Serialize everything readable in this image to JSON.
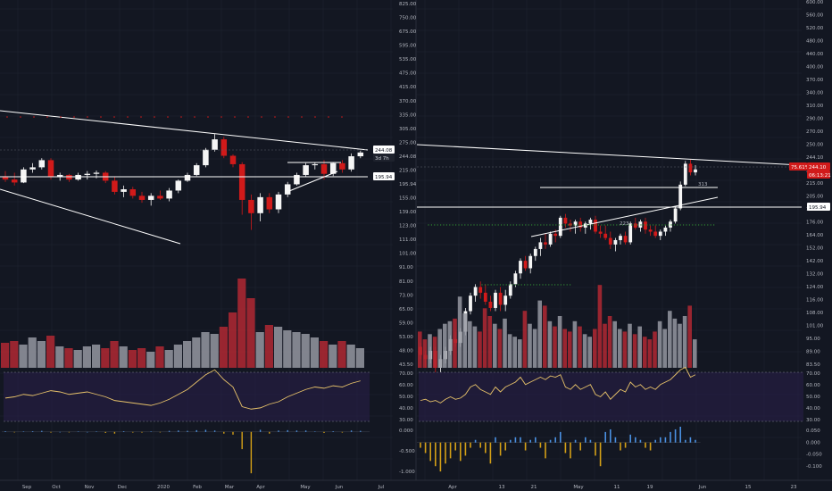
{
  "chart_data": [
    {
      "type": "candlestick",
      "panel": "left-weekly-price",
      "x_ticks": [
        "Sep",
        "Oct",
        "Nov",
        "Dec",
        "2020",
        "Feb",
        "Mar",
        "Apr",
        "May",
        "Jun",
        "Jul"
      ],
      "y_ticks": [
        "825.00",
        "750.00",
        "675.00",
        "595.00",
        "535.00",
        "475.00",
        "415.00",
        "370.00",
        "335.00",
        "305.00",
        "275.00",
        "244.08",
        "215.00",
        "195.94",
        "155.00",
        "139.00",
        "123.00",
        "111.00",
        "101.00",
        "91.00",
        "81.00",
        "73.00",
        "65.00",
        "59.00",
        "53.00",
        "48.00",
        "43.50"
      ],
      "scale": "log",
      "series": [
        {
          "values": [
            [
              205,
              215,
              196,
              200
            ],
            [
              200,
              212,
              190,
              195
            ],
            [
              195,
              222,
              194,
              218
            ],
            [
              218,
              230,
              212,
              222
            ],
            [
              222,
              240,
              218,
              236
            ],
            [
              236,
              240,
              200,
              204
            ],
            [
              204,
              212,
              198,
              208
            ],
            [
              208,
              210,
              196,
              200
            ],
            [
              200,
              212,
              198,
              208
            ],
            [
              208,
              215,
              200,
              210
            ],
            [
              210,
              216,
              202,
              212
            ],
            [
              212,
              215,
              194,
              198
            ],
            [
              198,
              204,
              176,
              180
            ],
            [
              180,
              190,
              172,
              184
            ],
            [
              184,
              188,
              170,
              174
            ],
            [
              174,
              180,
              164,
              168
            ],
            [
              168,
              178,
              160,
              174
            ],
            [
              174,
              182,
              168,
              170
            ],
            [
              170,
              186,
              166,
              182
            ],
            [
              182,
              200,
              178,
              198
            ],
            [
              198,
              212,
              196,
              208
            ],
            [
              208,
              230,
              206,
              226
            ],
            [
              226,
              262,
              222,
              258
            ],
            [
              258,
              295,
              254,
              282
            ],
            [
              282,
              288,
              240,
              245
            ],
            [
              245,
              248,
              222,
              228
            ],
            [
              228,
              232,
              148,
              168
            ],
            [
              168,
              176,
              130,
              150
            ],
            [
              150,
              178,
              140,
              172
            ],
            [
              172,
              178,
              150,
              155
            ],
            [
              155,
              180,
              150,
              176
            ],
            [
              176,
              196,
              172,
              192
            ],
            [
              192,
              212,
              190,
              208
            ],
            [
              208,
              230,
              204,
              226
            ],
            [
              226,
              232,
              218,
              228
            ],
            [
              228,
              236,
              200,
              210
            ],
            [
              210,
              232,
              206,
              230
            ],
            [
              230,
              236,
              212,
              218
            ],
            [
              218,
              250,
              214,
              244
            ],
            [
              244,
              256,
              240,
              252
            ]
          ]
        }
      ],
      "annotations": [
        "244.08",
        "3d 7h",
        "195.94"
      ]
    },
    {
      "type": "line",
      "panel": "left-rsi",
      "y_ticks": [
        "70.00",
        "60.00",
        "50.00",
        "40.00",
        "30.00"
      ],
      "ylim": [
        30,
        70
      ],
      "series": [
        {
          "values": [
            49,
            50,
            52,
            51,
            53,
            55,
            54,
            52,
            53,
            54,
            52,
            50,
            47,
            46,
            45,
            44,
            43,
            45,
            48,
            52,
            56,
            62,
            68,
            72,
            64,
            58,
            42,
            40,
            41,
            44,
            46,
            50,
            53,
            56,
            58,
            57,
            59,
            58,
            61,
            63
          ]
        }
      ]
    },
    {
      "type": "bar",
      "panel": "left-histogram",
      "y_ticks": [
        "0.000",
        "-0.500",
        "-1.000"
      ],
      "ylim": [
        -1.3,
        0.15
      ],
      "series": [
        {
          "values": [
            0.02,
            -0.01,
            0.01,
            0.02,
            0.03,
            -0.02,
            0.0,
            -0.01,
            0.01,
            0.0,
            0.01,
            -0.03,
            -0.05,
            0.02,
            -0.02,
            -0.02,
            0.01,
            -0.01,
            0.03,
            0.04,
            0.03,
            0.05,
            0.06,
            0.04,
            -0.05,
            -0.08,
            -0.5,
            -1.2,
            0.06,
            -0.05,
            0.04,
            0.05,
            0.04,
            0.04,
            0.01,
            -0.03,
            0.02,
            -0.02,
            0.04,
            0.03
          ]
        }
      ]
    },
    {
      "type": "candlestick",
      "panel": "right-daily-price",
      "x_ticks": [
        "Apr",
        "13",
        "21",
        "May",
        "11",
        "19",
        "Jun",
        "15",
        "23"
      ],
      "y_ticks": [
        "600.00",
        "560.00",
        "520.00",
        "480.00",
        "440.00",
        "400.00",
        "370.00",
        "340.00",
        "310.00",
        "290.00",
        "270.00",
        "250.00",
        "244.10",
        "230.00",
        "215.00",
        "205.00",
        "195.94",
        "176.00",
        "164.00",
        "152.00",
        "142.00",
        "132.00",
        "124.00",
        "116.00",
        "108.00",
        "101.00",
        "95.00",
        "89.00",
        "83.50"
      ],
      "scale": "log",
      "series": [
        {
          "values": [
            [
              90,
              92,
              84,
              86
            ],
            [
              86,
              88,
              80,
              84
            ],
            [
              84,
              90,
              82,
              88
            ],
            [
              88,
              90,
              78,
              80
            ],
            [
              80,
              86,
              78,
              84
            ],
            [
              84,
              90,
              82,
              88
            ],
            [
              88,
              96,
              86,
              94
            ],
            [
              94,
              98,
              90,
              92
            ],
            [
              92,
              100,
              90,
              98
            ],
            [
              98,
              112,
              96,
              110
            ],
            [
              110,
              122,
              108,
              120
            ],
            [
              120,
              128,
              116,
              126
            ],
            [
              126,
              130,
              118,
              122
            ],
            [
              122,
              128,
              114,
              116
            ],
            [
              116,
              120,
              110,
              112
            ],
            [
              112,
              124,
              110,
              122
            ],
            [
              122,
              126,
              110,
              114
            ],
            [
              114,
              124,
              110,
              120
            ],
            [
              120,
              130,
              118,
              128
            ],
            [
              128,
              138,
              126,
              136
            ],
            [
              136,
              148,
              132,
              146
            ],
            [
              146,
              150,
              138,
              140
            ],
            [
              140,
              152,
              136,
              150
            ],
            [
              150,
              158,
              146,
              156
            ],
            [
              156,
              166,
              150,
              162
            ],
            [
              162,
              170,
              156,
              160
            ],
            [
              160,
              172,
              158,
              170
            ],
            [
              170,
              174,
              162,
              168
            ],
            [
              168,
              188,
              166,
              186
            ],
            [
              186,
              190,
              176,
              180
            ],
            [
              180,
              184,
              172,
              178
            ],
            [
              178,
              184,
              170,
              182
            ],
            [
              182,
              186,
              172,
              176
            ],
            [
              176,
              182,
              170,
              180
            ],
            [
              180,
              186,
              174,
              184
            ],
            [
              184,
              188,
              170,
              172
            ],
            [
              172,
              178,
              166,
              170
            ],
            [
              170,
              178,
              164,
              166
            ],
            [
              166,
              172,
              156,
              160
            ],
            [
              160,
              166,
              154,
              164
            ],
            [
              164,
              170,
              160,
              168
            ],
            [
              168,
              172,
              160,
              162
            ],
            [
              162,
              182,
              160,
              180
            ],
            [
              180,
              186,
              174,
              176
            ],
            [
              176,
              184,
              172,
              182
            ],
            [
              182,
              186,
              170,
              174
            ],
            [
              174,
              178,
              168,
              172
            ],
            [
              172,
              178,
              166,
              168
            ],
            [
              168,
              174,
              164,
              172
            ],
            [
              172,
              178,
              168,
              176
            ],
            [
              176,
              184,
              172,
              182
            ],
            [
              182,
              198,
              180,
              196
            ],
            [
              196,
              228,
              194,
              224
            ],
            [
              224,
              256,
              222,
              252
            ],
            [
              252,
              258,
              236,
              240
            ],
            [
              240,
              250,
              236,
              244
            ]
          ]
        }
      ],
      "annotations": [
        "75.61%",
        "244.10",
        "06:13:21",
        "195.94",
        "313",
        "223"
      ]
    },
    {
      "type": "bar",
      "panel": "right-volume",
      "series": [
        {
          "values": [
            28,
            22,
            26,
            24,
            30,
            34,
            36,
            38,
            55,
            42,
            36,
            32,
            28,
            46,
            40,
            34,
            30,
            38,
            26,
            24,
            22,
            44,
            34,
            30,
            52,
            48,
            36,
            32,
            40,
            30,
            28,
            36,
            32,
            26,
            24,
            30,
            64,
            34,
            40,
            36,
            30,
            28,
            34,
            26,
            32,
            24,
            22,
            28,
            36,
            30,
            44,
            38,
            34,
            40,
            48,
            22
          ]
        }
      ]
    },
    {
      "type": "line",
      "panel": "right-rsi",
      "y_ticks": [
        "70.00",
        "60.00",
        "50.00",
        "40.00",
        "30.00"
      ],
      "ylim": [
        30,
        70
      ],
      "series": [
        {
          "values": [
            47,
            48,
            46,
            47,
            45,
            48,
            50,
            48,
            49,
            52,
            58,
            60,
            56,
            54,
            52,
            58,
            54,
            58,
            60,
            62,
            66,
            60,
            62,
            64,
            66,
            64,
            67,
            66,
            68,
            58,
            56,
            60,
            56,
            58,
            60,
            52,
            50,
            54,
            48,
            52,
            56,
            54,
            62,
            58,
            60,
            56,
            58,
            56,
            60,
            62,
            64,
            68,
            72,
            74,
            66,
            68
          ]
        }
      ]
    },
    {
      "type": "bar",
      "panel": "right-histogram",
      "y_ticks": [
        "0.050",
        "0.000",
        "-0.050",
        "-0.100"
      ],
      "ylim": [
        -0.13,
        0.06
      ],
      "series": [
        {
          "values": [
            -0.02,
            -0.04,
            -0.07,
            -0.09,
            -0.11,
            -0.08,
            -0.06,
            -0.03,
            -0.07,
            -0.05,
            -0.02,
            0.01,
            -0.02,
            -0.04,
            -0.08,
            0.02,
            -0.05,
            -0.03,
            0.01,
            0.02,
            0.02,
            -0.03,
            0.01,
            0.02,
            -0.02,
            -0.06,
            0.01,
            0.02,
            0.04,
            -0.04,
            -0.06,
            0.01,
            -0.03,
            0.02,
            0.01,
            -0.05,
            -0.09,
            0.04,
            0.05,
            0.02,
            -0.03,
            -0.02,
            0.03,
            0.02,
            0.01,
            -0.02,
            -0.03,
            0.01,
            0.02,
            0.02,
            0.04,
            0.05,
            0.06,
            0.01,
            0.02,
            0.01
          ]
        }
      ]
    }
  ]
}
